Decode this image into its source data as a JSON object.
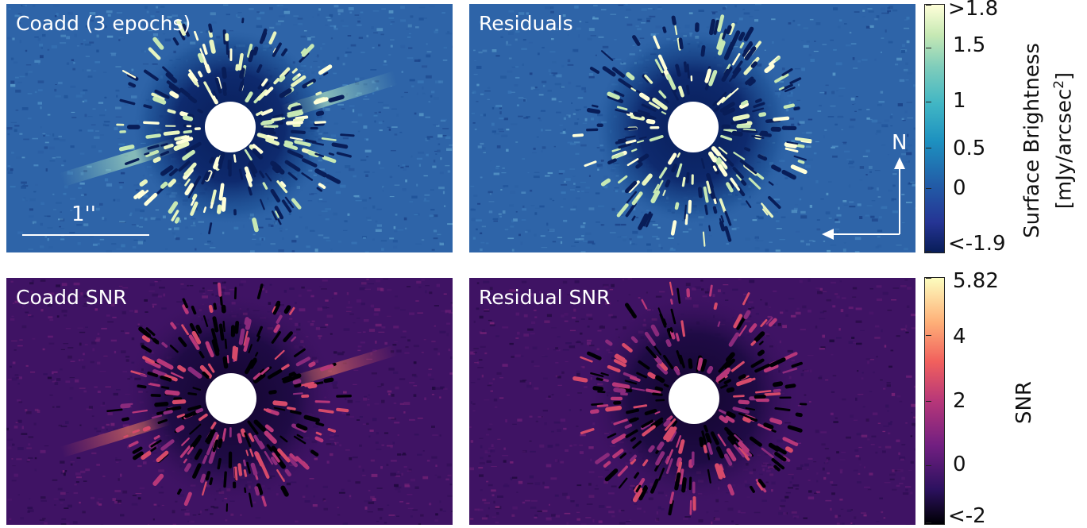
{
  "panels": {
    "coadd": {
      "label": "Coadd (3 epochs)"
    },
    "residuals": {
      "label": "Residuals"
    },
    "coadd_snr": {
      "label": "Coadd SNR"
    },
    "residual_snr": {
      "label": "Residual SNR"
    }
  },
  "scale_bar": {
    "label": "1''"
  },
  "compass": {
    "north_label": "N"
  },
  "colorbars": {
    "surface_brightness": {
      "title_line1": "Surface Brightness",
      "title_line2_prefix": "[mJy/arcsec",
      "title_line2_sup": "2",
      "title_line2_suffix": "]",
      "colormap": [
        "#081d58",
        "#253494",
        "#225ea8",
        "#1d91c0",
        "#41b6c4",
        "#7fcdbb",
        "#c7e9b4",
        "#ffffd9"
      ],
      "tick_labels": [
        "<-1.9",
        "0",
        "0.5",
        "1",
        "1.5",
        ">1.8"
      ]
    },
    "snr": {
      "title": "SNR",
      "colormap": [
        "#000004",
        "#2c115f",
        "#721f81",
        "#b73779",
        "#f1605d",
        "#feb078",
        "#fcfdbf"
      ],
      "tick_labels": [
        "<-2",
        "0",
        "2",
        "4",
        "5.82"
      ]
    }
  },
  "colors": {
    "bright_panel_bg": "#2e64a8",
    "snr_panel_bg": "#3f1364",
    "mask": "#ffffff"
  }
}
